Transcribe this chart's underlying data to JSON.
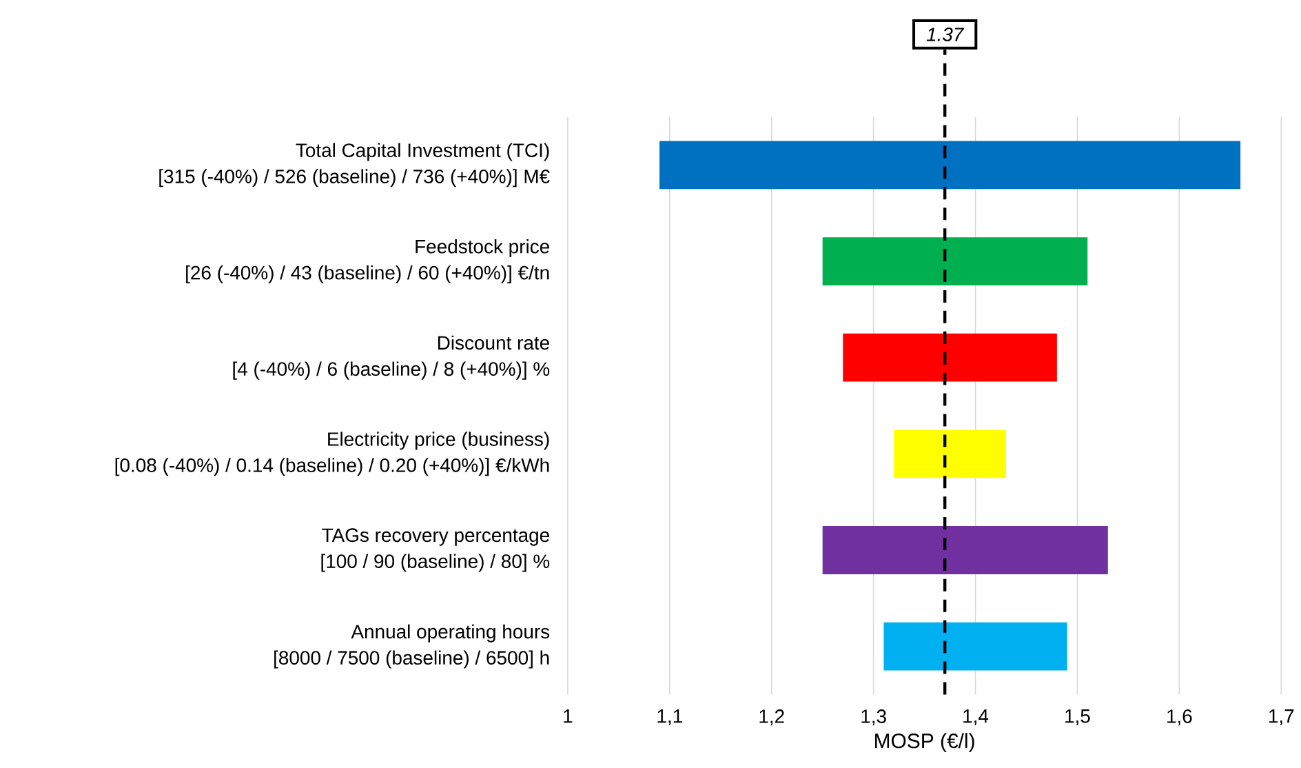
{
  "chart_data": {
    "type": "bar",
    "orientation": "horizontal",
    "xlabel": "MOSP (€/l)",
    "categories": [
      "Total Capital Investment (TCI)\n[315 (-40%) / 526 (baseline) / 736 (+40%)] M€",
      "Feedstock price\n[26 (-40%) / 43 (baseline) / 60 (+40%)] €/tn",
      "Discount rate\n[4 (-40%) / 6 (baseline) / 8 (+40%)] %",
      "Electricity price (business)\n[0.08 (-40%) / 0.14 (baseline) / 0.20 (+40%)] €/kWh",
      "TAGs recovery percentage\n[100 / 90 (baseline) / 80] %",
      "Annual operating hours\n[8000 / 7500 (baseline) / 6500] h"
    ],
    "base": [
      1.09,
      1.25,
      1.27,
      1.32,
      1.25,
      1.31
    ],
    "values": [
      0.57,
      0.26,
      0.21,
      0.11,
      0.28,
      0.18
    ],
    "colors": [
      "#0070c0",
      "#00b050",
      "#ff0000",
      "#ffff00",
      "#7030a0",
      "#00b0f0"
    ],
    "xlim": [
      1,
      1.7
    ],
    "xticks": [
      1,
      {
        "value": 1.1,
        "label": "1,1"
      },
      {
        "value": 1.2,
        "label": "1,2"
      },
      {
        "value": 1.3,
        "label": "1,3"
      },
      {
        "value": 1.4,
        "label": "1,4"
      },
      {
        "value": 1.5,
        "label": "1,5"
      },
      {
        "value": 1.6,
        "label": "1,6"
      },
      {
        "value": 1.7,
        "label": "1,7"
      }
    ],
    "grid": "x",
    "ref_lines": [
      {
        "axis": "x",
        "value": 1.37,
        "label": "1.37",
        "color": "#000000",
        "line_style": "dashed"
      }
    ]
  }
}
